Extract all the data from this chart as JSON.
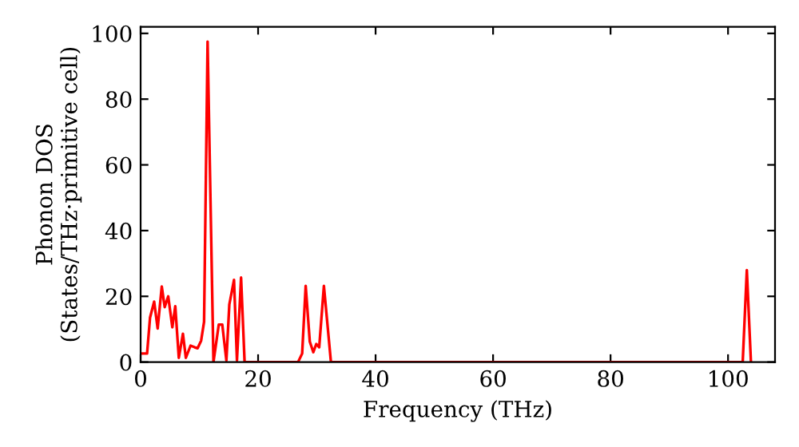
{
  "chart_data": {
    "type": "line",
    "xlabel": "Frequency (THz)",
    "ylabel": "Phonon DOS\n(States/THz·primitive cell)",
    "xlim": [
      0,
      108
    ],
    "ylim": [
      0,
      102
    ],
    "xticks": [
      0,
      20,
      40,
      60,
      80,
      100
    ],
    "yticks": [
      0,
      20,
      40,
      60,
      80,
      100
    ],
    "grid": false,
    "marker": "none",
    "line_style": "solid",
    "series": [
      {
        "color": "#ff0000",
        "x": [
          0,
          1.1,
          1.6,
          2.3,
          2.9,
          3.6,
          4.1,
          4.7,
          5.4,
          5.9,
          6.5,
          7.2,
          7.7,
          8.5,
          9.2,
          9.7,
          10.3,
          10.8,
          11.4,
          12.4,
          13.3,
          13.9,
          14.6,
          15.1,
          15.9,
          16.4,
          17.1,
          17.7,
          26.8,
          27.5,
          28.1,
          28.8,
          29.4,
          29.9,
          30.4,
          31.2,
          32.4,
          102.5,
          103.2,
          103.9
        ],
        "values": [
          2.6,
          2.6,
          13.5,
          18.4,
          10.2,
          23,
          16.7,
          20,
          10.6,
          17,
          1.3,
          8.6,
          1.3,
          5,
          4.5,
          4.2,
          6.5,
          12.2,
          97.5,
          0,
          11.4,
          11.4,
          0.5,
          17.5,
          25,
          0.5,
          25.7,
          0,
          0,
          2.6,
          23.2,
          6.2,
          3,
          5.5,
          4.5,
          23.2,
          0,
          0,
          28,
          0
        ]
      }
    ]
  }
}
